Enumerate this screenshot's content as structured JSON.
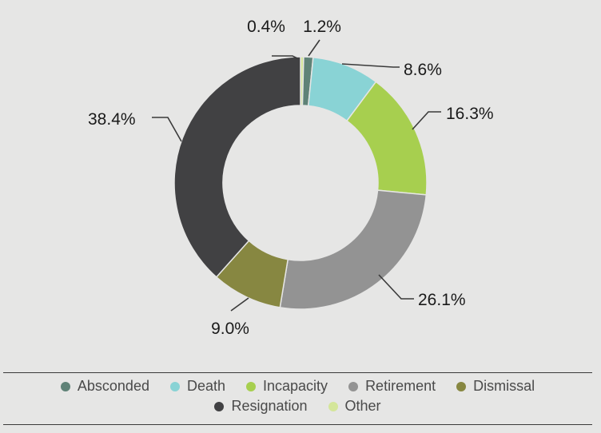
{
  "chart_data": {
    "type": "pie",
    "variant": "donut",
    "title": "",
    "slices": [
      {
        "name": "Other",
        "value": 0.4,
        "label": "0.4%",
        "color": "#d4e69a"
      },
      {
        "name": "Absconded",
        "value": 1.2,
        "label": "1.2%",
        "color": "#5f8277"
      },
      {
        "name": "Death",
        "value": 8.6,
        "label": "8.6%",
        "color": "#89d3d5"
      },
      {
        "name": "Incapacity",
        "value": 16.3,
        "label": "16.3%",
        "color": "#a7cf4f"
      },
      {
        "name": "Retirement",
        "value": 26.1,
        "label": "26.1%",
        "color": "#939393"
      },
      {
        "name": "Dismissal",
        "value": 9.0,
        "label": "9.0%",
        "color": "#878741"
      },
      {
        "name": "Resignation",
        "value": 38.4,
        "label": "38.4%",
        "color": "#414143"
      }
    ],
    "legend": {
      "placement": "bottom",
      "items": [
        {
          "name": "Absconded",
          "color": "#5f8277"
        },
        {
          "name": "Death",
          "color": "#89d3d5"
        },
        {
          "name": "Incapacity",
          "color": "#a7cf4f"
        },
        {
          "name": "Retirement",
          "color": "#939393"
        },
        {
          "name": "Dismissal",
          "color": "#878741"
        },
        {
          "name": "Resignation",
          "color": "#414143"
        },
        {
          "name": "Other",
          "color": "#d4e69a"
        }
      ]
    },
    "colors": {
      "background": "#e6e6e5",
      "label_text": "#1a1a1a",
      "legend_text": "#4a4a4a",
      "leader_line": "#3a3a3a"
    }
  }
}
